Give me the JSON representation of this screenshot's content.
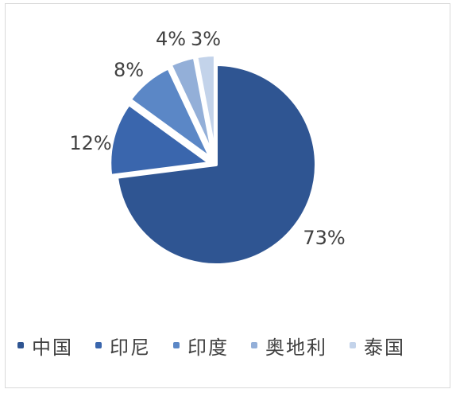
{
  "chart_data": {
    "type": "pie",
    "categories": [
      "中国",
      "印尼",
      "印度",
      "奥地利",
      "泰国"
    ],
    "values": [
      73,
      12,
      8,
      4,
      3
    ],
    "value_labels": [
      "73%",
      "12%",
      "8%",
      "4%",
      "3%"
    ],
    "colors": [
      "#2f5592",
      "#3a66ad",
      "#5b87c6",
      "#93afd8",
      "#c3d3ea"
    ],
    "exploded": true,
    "start_angle_deg": 0,
    "legend_position": "bottom-left"
  },
  "legend": [
    {
      "label": "中国",
      "color": "#2f5592"
    },
    {
      "label": "印尼",
      "color": "#3a66ad"
    },
    {
      "label": "印度",
      "color": "#5b87c6"
    },
    {
      "label": "奥地利",
      "color": "#93afd8"
    },
    {
      "label": "泰国",
      "color": "#c3d3ea"
    }
  ]
}
